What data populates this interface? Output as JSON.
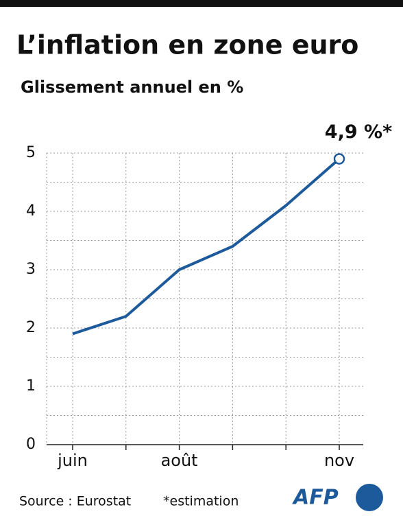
{
  "chart_data": {
    "type": "line",
    "title": "L’inflation en zone euro",
    "subtitle": "Glissement annuel en %",
    "categories": [
      "juin",
      null,
      "août",
      null,
      null,
      "nov"
    ],
    "values": [
      1.9,
      2.2,
      3.0,
      3.4,
      4.1,
      4.9
    ],
    "value_labels": [
      null,
      null,
      null,
      null,
      null,
      "4,9 %*"
    ],
    "color": "#1d5a9c",
    "ylim": [
      0,
      5
    ],
    "yticks": [
      0,
      1,
      2,
      3,
      4,
      5
    ],
    "yminor": [
      0.5,
      1.5,
      2.5,
      3.5,
      4.5
    ],
    "grid": true,
    "source": "Source : Eurostat",
    "note": "*estimation",
    "logo": "AFP"
  }
}
